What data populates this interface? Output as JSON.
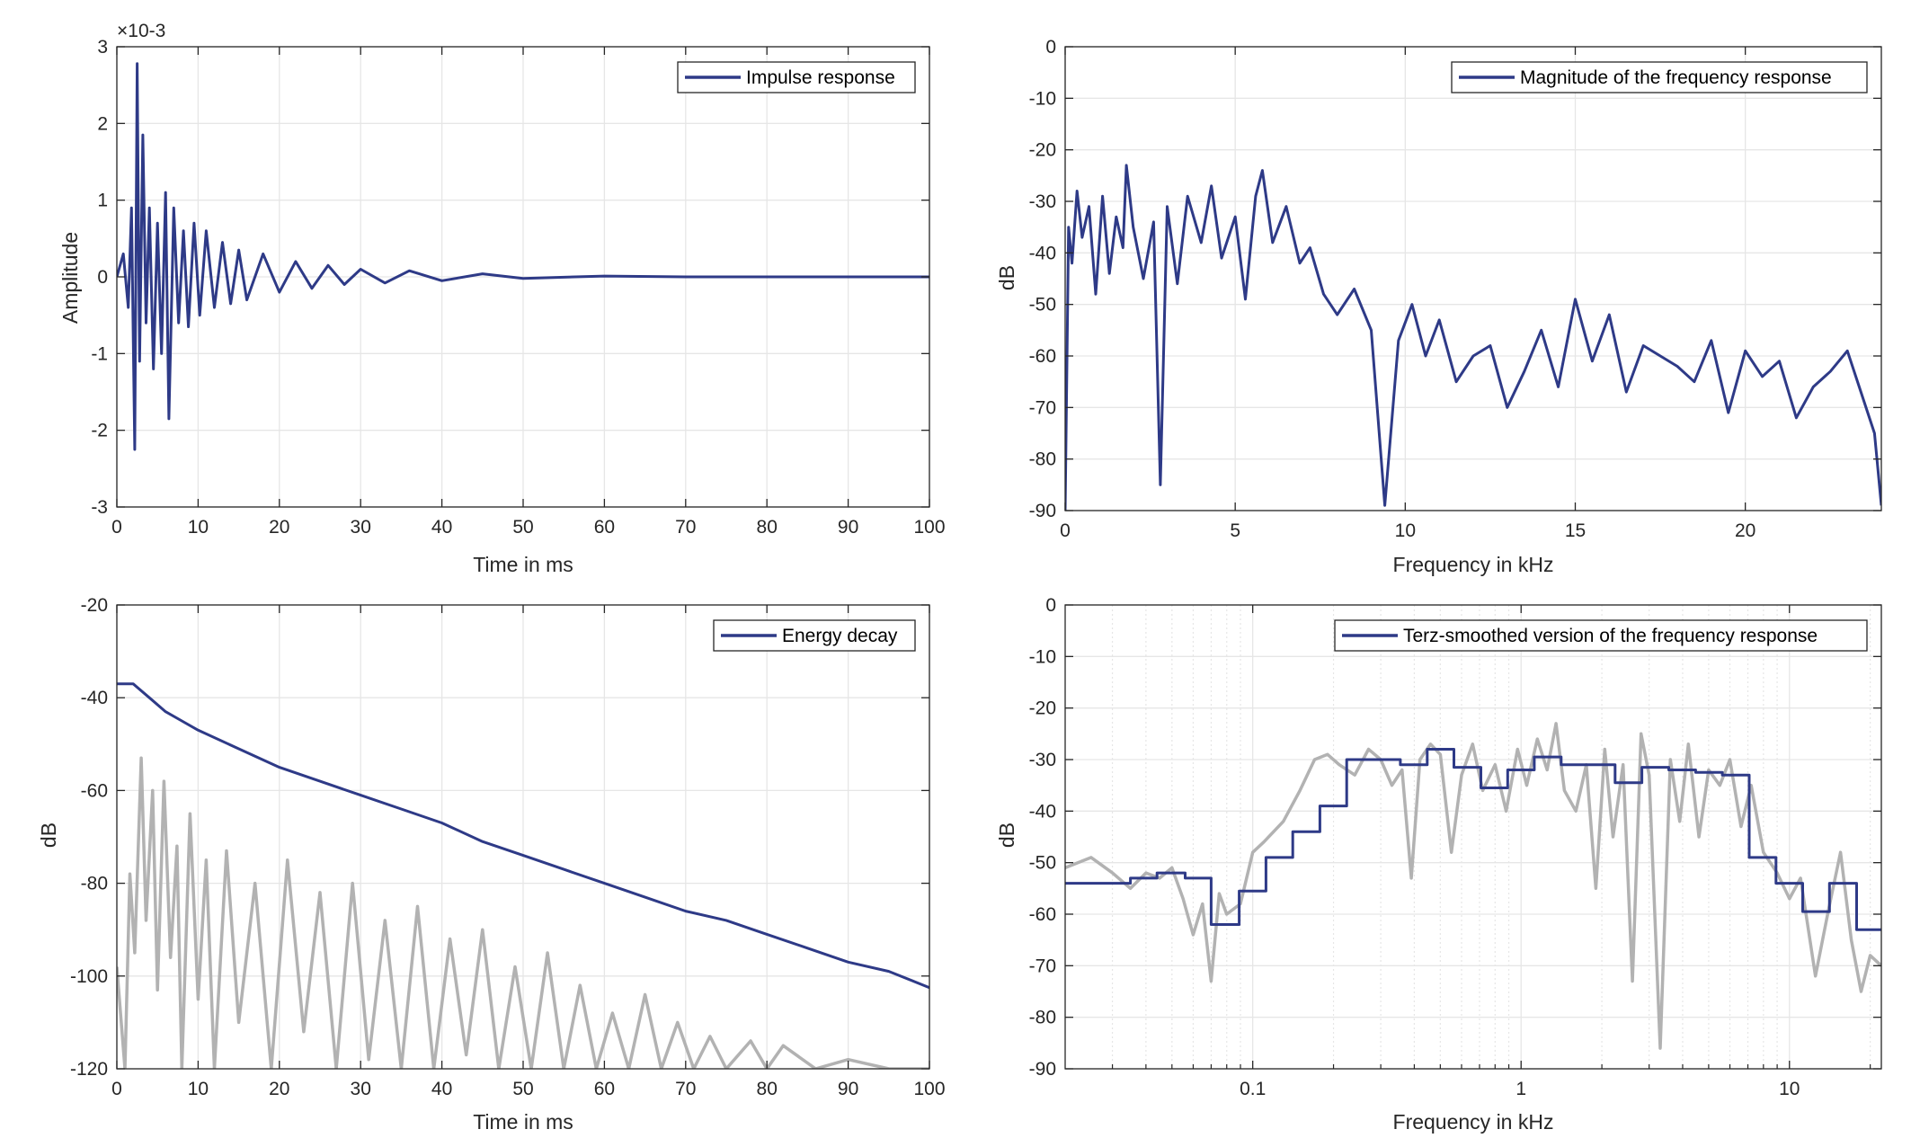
{
  "colors": {
    "series_main": "#2E3A87",
    "series_gray": "#B2B2B2",
    "grid": "#E6E6E6",
    "axis": "#262626",
    "background": "#FFFFFF"
  },
  "chart_data": [
    {
      "type": "line",
      "xlabel": "Time in ms",
      "ylabel": "Amplitude",
      "xlim": [
        0,
        100
      ],
      "ylim": [
        -3,
        3
      ],
      "y_exponent_label": "×10-3",
      "xticks": [
        0,
        10,
        20,
        30,
        40,
        50,
        60,
        70,
        80,
        90,
        100
      ],
      "yticks": [
        -3,
        -2,
        -1,
        0,
        1,
        2,
        3
      ],
      "grid": true,
      "legend": "top-right",
      "series": [
        {
          "name": "Impulse response",
          "color": "#2E3A87",
          "x": [
            0,
            0.8,
            1.4,
            1.8,
            2.2,
            2.5,
            2.8,
            3.2,
            3.6,
            4.0,
            4.5,
            5.0,
            5.5,
            6.0,
            6.4,
            7.0,
            7.6,
            8.2,
            8.8,
            9.5,
            10.2,
            11,
            12,
            13,
            14,
            15,
            16,
            18,
            20,
            22,
            24,
            26,
            28,
            30,
            33,
            36,
            40,
            45,
            50,
            60,
            70,
            80,
            90,
            100
          ],
          "values": [
            0,
            0.3,
            -0.4,
            0.9,
            -2.25,
            2.78,
            -1.1,
            1.85,
            -0.6,
            0.9,
            -1.2,
            0.7,
            -1.0,
            1.1,
            -1.85,
            0.9,
            -0.6,
            0.6,
            -0.65,
            0.7,
            -0.5,
            0.6,
            -0.4,
            0.45,
            -0.35,
            0.35,
            -0.3,
            0.3,
            -0.2,
            0.2,
            -0.15,
            0.15,
            -0.1,
            0.1,
            -0.08,
            0.08,
            -0.05,
            0.04,
            -0.02,
            0.01,
            0.0,
            0.0,
            0.0,
            0.0
          ]
        }
      ]
    },
    {
      "type": "line",
      "xlabel": "Frequency in kHz",
      "ylabel": "dB",
      "xlim": [
        0,
        24
      ],
      "ylim": [
        -90,
        0
      ],
      "xticks": [
        0,
        5,
        10,
        15,
        20
      ],
      "yticks": [
        0,
        -10,
        -20,
        -30,
        -40,
        -50,
        -60,
        -70,
        -80,
        -90
      ],
      "grid": true,
      "legend": "top-right",
      "series": [
        {
          "name": "Magnitude of the frequency response",
          "color": "#2E3A87",
          "x": [
            0,
            0.1,
            0.2,
            0.35,
            0.5,
            0.7,
            0.9,
            1.1,
            1.3,
            1.5,
            1.7,
            1.8,
            2.0,
            2.3,
            2.6,
            2.8,
            3.0,
            3.3,
            3.6,
            4.0,
            4.3,
            4.6,
            5.0,
            5.3,
            5.6,
            5.8,
            6.1,
            6.5,
            6.9,
            7.2,
            7.6,
            8.0,
            8.5,
            9.0,
            9.4,
            9.8,
            10.2,
            10.6,
            11.0,
            11.5,
            12.0,
            12.5,
            13.0,
            13.5,
            14.0,
            14.5,
            15.0,
            15.5,
            16.0,
            16.5,
            17.0,
            17.5,
            18.0,
            18.5,
            19.0,
            19.5,
            20.0,
            20.5,
            21.0,
            21.5,
            22.0,
            22.5,
            23.0,
            23.4,
            23.8,
            24.0
          ],
          "values": [
            -90,
            -35,
            -42,
            -28,
            -37,
            -31,
            -48,
            -29,
            -44,
            -33,
            -39,
            -23,
            -35,
            -45,
            -34,
            -85,
            -31,
            -46,
            -29,
            -38,
            -27,
            -41,
            -33,
            -49,
            -29,
            -24,
            -38,
            -31,
            -42,
            -39,
            -48,
            -52,
            -47,
            -55,
            -89,
            -57,
            -50,
            -60,
            -53,
            -65,
            -60,
            -58,
            -70,
            -63,
            -55,
            -66,
            -49,
            -61,
            -52,
            -67,
            -58,
            -60,
            -62,
            -65,
            -57,
            -71,
            -59,
            -64,
            -61,
            -72,
            -66,
            -63,
            -59,
            -67,
            -75,
            -89
          ]
        }
      ]
    },
    {
      "type": "line",
      "xlabel": "Time in ms",
      "ylabel": "dB",
      "xlim": [
        0,
        100
      ],
      "ylim": [
        -120,
        -20
      ],
      "xticks": [
        0,
        10,
        20,
        30,
        40,
        50,
        60,
        70,
        80,
        90,
        100
      ],
      "yticks": [
        -20,
        -40,
        -60,
        -80,
        -100,
        -120
      ],
      "grid": true,
      "legend": "top-right",
      "series": [
        {
          "name": "Energy decay",
          "color": "#2E3A87",
          "x": [
            0,
            2,
            4,
            6,
            8,
            10,
            15,
            20,
            25,
            30,
            35,
            40,
            45,
            50,
            55,
            60,
            65,
            70,
            75,
            80,
            85,
            90,
            95,
            100
          ],
          "values": [
            -37,
            -37,
            -40,
            -43,
            -45,
            -47,
            -51,
            -55,
            -58,
            -61,
            -64,
            -67,
            -71,
            -74,
            -77,
            -80,
            -83,
            -86,
            -88,
            -91,
            -94,
            -97,
            -99,
            -102.5
          ]
        },
        {
          "color": "#B2B2B2",
          "x": [
            0,
            1,
            1.6,
            2.2,
            3,
            3.6,
            4.4,
            5,
            5.8,
            6.6,
            7.4,
            8,
            9,
            10,
            11,
            12,
            13.5,
            15,
            17,
            19,
            21,
            23,
            25,
            27,
            29,
            31,
            33,
            35,
            37,
            39,
            41,
            43,
            45,
            47,
            49,
            51,
            53,
            55,
            57,
            59,
            61,
            63,
            65,
            67,
            69,
            71,
            73,
            75,
            78,
            80,
            82,
            86,
            90,
            95,
            100
          ],
          "values": [
            -98,
            -120,
            -78,
            -95,
            -53,
            -88,
            -60,
            -103,
            -58,
            -96,
            -72,
            -120,
            -65,
            -105,
            -75,
            -120,
            -73,
            -110,
            -80,
            -120,
            -75,
            -112,
            -82,
            -120,
            -80,
            -118,
            -88,
            -120,
            -85,
            -120,
            -92,
            -117,
            -90,
            -120,
            -98,
            -120,
            -95,
            -120,
            -102,
            -120,
            -108,
            -120,
            -104,
            -120,
            -110,
            -120,
            -113,
            -120,
            -114,
            -120,
            -115,
            -120,
            -118,
            -120,
            -120
          ]
        }
      ]
    },
    {
      "type": "line",
      "xscale": "log",
      "xlabel": "Frequency in kHz",
      "ylabel": "dB",
      "xlim": [
        0.02,
        22
      ],
      "ylim": [
        -90,
        0
      ],
      "xticks": [
        0.1,
        1,
        10
      ],
      "xticklabels": [
        "0.1",
        "1",
        "10"
      ],
      "yticks": [
        0,
        -10,
        -20,
        -30,
        -40,
        -50,
        -60,
        -70,
        -80,
        -90
      ],
      "grid": true,
      "legend": "top-right",
      "series": [
        {
          "name": "Terz-smoothed version of the frequency response",
          "color": "#2E3A87",
          "step_edges": [
            0.02,
            0.035,
            0.044,
            0.056,
            0.07,
            0.089,
            0.112,
            0.141,
            0.178,
            0.224,
            0.282,
            0.355,
            0.447,
            0.562,
            0.708,
            0.891,
            1.12,
            1.41,
            1.78,
            2.24,
            2.82,
            3.55,
            4.47,
            5.62,
            7.08,
            8.91,
            11.2,
            14.1,
            17.8,
            22
          ],
          "values": [
            -54,
            -53,
            -52,
            -53,
            -62,
            -55.5,
            -49,
            -44,
            -39,
            -30,
            -30,
            -31,
            -28,
            -31.5,
            -35.5,
            -32,
            -29.5,
            -31,
            -31,
            -34.5,
            -31.5,
            -32,
            -32.5,
            -33,
            -49,
            -54,
            -59.5,
            -54,
            -63
          ]
        },
        {
          "color": "#B2B2B2",
          "x": [
            0.02,
            0.025,
            0.03,
            0.035,
            0.04,
            0.045,
            0.05,
            0.055,
            0.06,
            0.065,
            0.07,
            0.075,
            0.08,
            0.09,
            0.1,
            0.11,
            0.13,
            0.15,
            0.17,
            0.19,
            0.21,
            0.24,
            0.27,
            0.3,
            0.33,
            0.36,
            0.39,
            0.42,
            0.46,
            0.5,
            0.55,
            0.6,
            0.66,
            0.72,
            0.8,
            0.88,
            0.97,
            1.05,
            1.15,
            1.25,
            1.35,
            1.45,
            1.6,
            1.75,
            1.9,
            2.05,
            2.2,
            2.4,
            2.6,
            2.8,
            3.0,
            3.3,
            3.6,
            3.9,
            4.2,
            4.6,
            5.0,
            5.5,
            6.0,
            6.6,
            7.2,
            8.0,
            9.0,
            10.0,
            11.0,
            12.5,
            14.0,
            15.5,
            17.0,
            18.5,
            20.0,
            22.0
          ],
          "values": [
            -51,
            -49,
            -52,
            -55,
            -52,
            -53,
            -51,
            -57,
            -64,
            -58,
            -73,
            -56,
            -60,
            -58,
            -48,
            -46,
            -42,
            -36,
            -30,
            -29,
            -31,
            -33,
            -28,
            -30,
            -35,
            -32,
            -53,
            -30,
            -27,
            -29,
            -48,
            -33,
            -27,
            -36,
            -31,
            -40,
            -28,
            -35,
            -26,
            -32,
            -23,
            -36,
            -40,
            -31,
            -55,
            -28,
            -45,
            -31,
            -73,
            -25,
            -33,
            -86,
            -30,
            -42,
            -27,
            -45,
            -32,
            -35,
            -30,
            -43,
            -35,
            -48,
            -52,
            -57,
            -53,
            -72,
            -59,
            -48,
            -65,
            -75,
            -68,
            -70
          ]
        }
      ]
    }
  ]
}
